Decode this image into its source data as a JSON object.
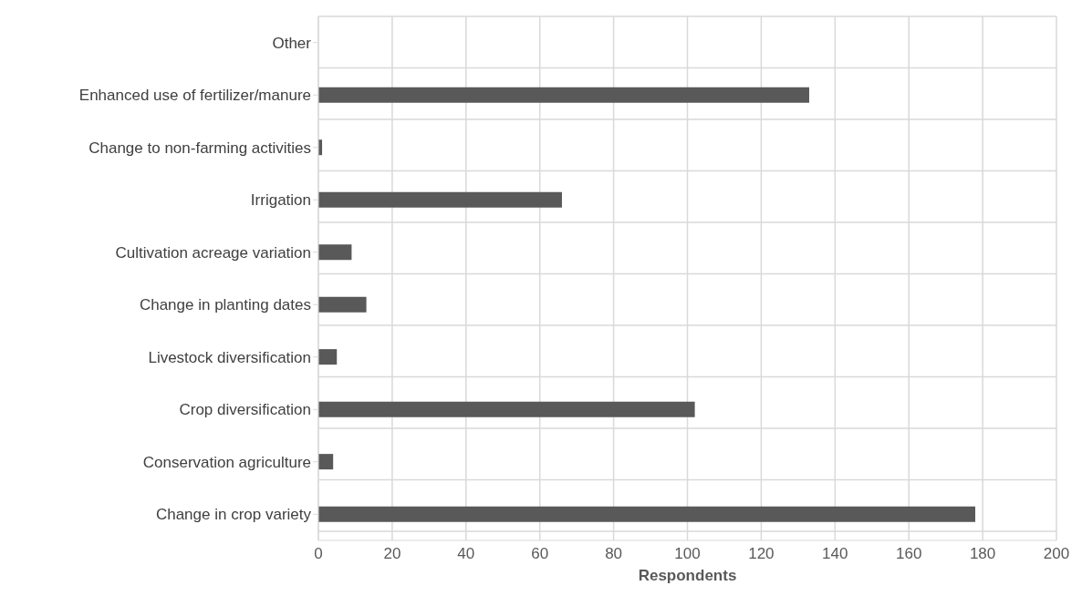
{
  "chart_data": {
    "type": "bar",
    "orientation": "horizontal",
    "xlabel": "Respondents",
    "categories": [
      "Other",
      "Enhanced use of fertilizer/manure",
      "Change to non-farming activities",
      "Irrigation",
      "Cultivation acreage variation",
      "Change in planting dates",
      "Livestock diversification",
      "Crop diversification",
      "Conservation agriculture",
      "Change in crop variety"
    ],
    "values": [
      0,
      133,
      1,
      66,
      9,
      13,
      5,
      102,
      4,
      178
    ],
    "color": "#595959",
    "xlim": [
      0,
      200
    ],
    "xticks": [
      0,
      20,
      40,
      60,
      80,
      100,
      120,
      140,
      160,
      180,
      200
    ],
    "grid": true
  }
}
